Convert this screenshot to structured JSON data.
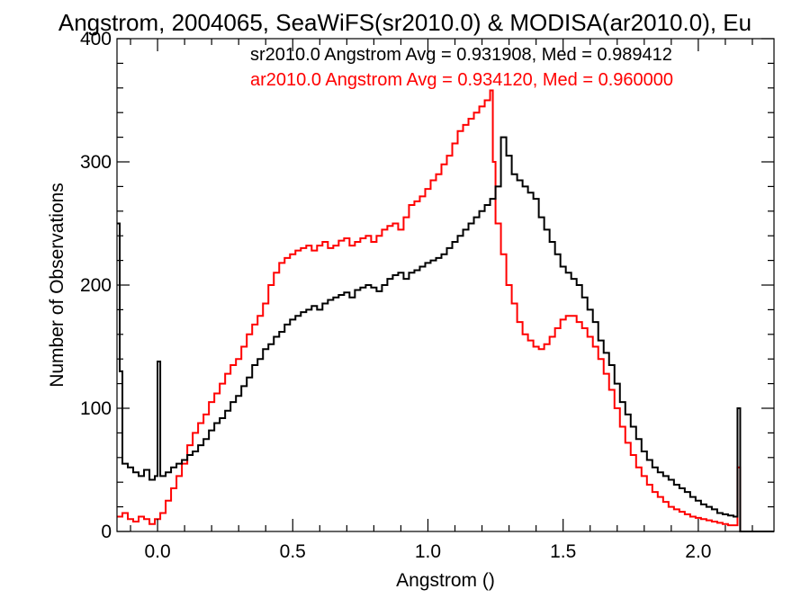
{
  "chart_data": {
    "type": "line",
    "title": "Angstrom, 2004065, SeaWiFS(sr2010.0) & MODISA(ar2010.0), Eu",
    "xlabel": "Angstrom ()",
    "ylabel": "Number of Observations",
    "xlim": [
      -0.15,
      2.28
    ],
    "ylim": [
      0,
      400
    ],
    "x_ticks": [
      0.0,
      0.5,
      1.0,
      1.5,
      2.0
    ],
    "x_tick_labels": [
      "0.0",
      "0.5",
      "1.0",
      "1.5",
      "2.0"
    ],
    "y_ticks": [
      0,
      100,
      200,
      300,
      400
    ],
    "y_tick_labels": [
      "0",
      "100",
      "200",
      "300",
      "400"
    ],
    "grid": false,
    "legend_position": "top-right",
    "series": [
      {
        "name": "sr2010.0",
        "color": "#000000",
        "annotation": "sr2010.0 Angstrom Avg = 0.931908, Med = 0.989412",
        "points": [
          [
            -0.15,
            250
          ],
          [
            -0.14,
            130
          ],
          [
            -0.13,
            55
          ],
          [
            -0.11,
            52
          ],
          [
            -0.09,
            48
          ],
          [
            -0.07,
            45
          ],
          [
            -0.05,
            50
          ],
          [
            -0.03,
            42
          ],
          [
            -0.01,
            45
          ],
          [
            0.0,
            138
          ],
          [
            0.01,
            45
          ],
          [
            0.03,
            48
          ],
          [
            0.05,
            52
          ],
          [
            0.07,
            55
          ],
          [
            0.09,
            58
          ],
          [
            0.11,
            62
          ],
          [
            0.13,
            65
          ],
          [
            0.15,
            70
          ],
          [
            0.17,
            75
          ],
          [
            0.19,
            82
          ],
          [
            0.21,
            88
          ],
          [
            0.23,
            92
          ],
          [
            0.25,
            98
          ],
          [
            0.27,
            105
          ],
          [
            0.29,
            110
          ],
          [
            0.31,
            118
          ],
          [
            0.33,
            125
          ],
          [
            0.35,
            135
          ],
          [
            0.37,
            140
          ],
          [
            0.39,
            148
          ],
          [
            0.41,
            152
          ],
          [
            0.43,
            158
          ],
          [
            0.45,
            162
          ],
          [
            0.47,
            168
          ],
          [
            0.49,
            172
          ],
          [
            0.51,
            175
          ],
          [
            0.53,
            178
          ],
          [
            0.55,
            180
          ],
          [
            0.57,
            183
          ],
          [
            0.59,
            180
          ],
          [
            0.61,
            185
          ],
          [
            0.63,
            188
          ],
          [
            0.65,
            190
          ],
          [
            0.67,
            192
          ],
          [
            0.69,
            194
          ],
          [
            0.71,
            190
          ],
          [
            0.73,
            196
          ],
          [
            0.75,
            198
          ],
          [
            0.77,
            200
          ],
          [
            0.79,
            198
          ],
          [
            0.81,
            195
          ],
          [
            0.83,
            200
          ],
          [
            0.85,
            205
          ],
          [
            0.87,
            208
          ],
          [
            0.89,
            210
          ],
          [
            0.91,
            205
          ],
          [
            0.93,
            210
          ],
          [
            0.95,
            212
          ],
          [
            0.97,
            215
          ],
          [
            0.99,
            218
          ],
          [
            1.01,
            220
          ],
          [
            1.03,
            222
          ],
          [
            1.05,
            225
          ],
          [
            1.07,
            230
          ],
          [
            1.09,
            235
          ],
          [
            1.11,
            240
          ],
          [
            1.13,
            245
          ],
          [
            1.15,
            250
          ],
          [
            1.17,
            255
          ],
          [
            1.19,
            260
          ],
          [
            1.21,
            265
          ],
          [
            1.23,
            270
          ],
          [
            1.25,
            280
          ],
          [
            1.27,
            320
          ],
          [
            1.29,
            305
          ],
          [
            1.31,
            290
          ],
          [
            1.33,
            285
          ],
          [
            1.35,
            280
          ],
          [
            1.37,
            275
          ],
          [
            1.39,
            270
          ],
          [
            1.41,
            255
          ],
          [
            1.43,
            245
          ],
          [
            1.45,
            235
          ],
          [
            1.47,
            225
          ],
          [
            1.49,
            215
          ],
          [
            1.51,
            210
          ],
          [
            1.53,
            205
          ],
          [
            1.55,
            200
          ],
          [
            1.57,
            190
          ],
          [
            1.59,
            180
          ],
          [
            1.61,
            170
          ],
          [
            1.63,
            155
          ],
          [
            1.65,
            145
          ],
          [
            1.67,
            135
          ],
          [
            1.69,
            120
          ],
          [
            1.71,
            105
          ],
          [
            1.73,
            95
          ],
          [
            1.75,
            85
          ],
          [
            1.77,
            75
          ],
          [
            1.79,
            65
          ],
          [
            1.81,
            58
          ],
          [
            1.83,
            52
          ],
          [
            1.85,
            48
          ],
          [
            1.87,
            45
          ],
          [
            1.89,
            42
          ],
          [
            1.91,
            38
          ],
          [
            1.93,
            35
          ],
          [
            1.95,
            32
          ],
          [
            1.97,
            28
          ],
          [
            1.99,
            25
          ],
          [
            2.01,
            22
          ],
          [
            2.03,
            20
          ],
          [
            2.05,
            18
          ],
          [
            2.07,
            15
          ],
          [
            2.09,
            14
          ],
          [
            2.11,
            13
          ],
          [
            2.13,
            12
          ],
          [
            2.145,
            100
          ],
          [
            2.155,
            0
          ],
          [
            2.28,
            0
          ]
        ]
      },
      {
        "name": "ar2010.0",
        "color": "#ff0000",
        "annotation": "ar2010.0 Angstrom Avg = 0.934120, Med = 0.960000",
        "points": [
          [
            -0.15,
            12
          ],
          [
            -0.13,
            15
          ],
          [
            -0.11,
            10
          ],
          [
            -0.09,
            8
          ],
          [
            -0.07,
            12
          ],
          [
            -0.05,
            10
          ],
          [
            -0.03,
            6
          ],
          [
            -0.01,
            10
          ],
          [
            0.01,
            15
          ],
          [
            0.03,
            25
          ],
          [
            0.05,
            35
          ],
          [
            0.07,
            45
          ],
          [
            0.09,
            55
          ],
          [
            0.11,
            70
          ],
          [
            0.13,
            80
          ],
          [
            0.15,
            88
          ],
          [
            0.17,
            95
          ],
          [
            0.19,
            105
          ],
          [
            0.21,
            112
          ],
          [
            0.23,
            120
          ],
          [
            0.25,
            128
          ],
          [
            0.27,
            135
          ],
          [
            0.29,
            140
          ],
          [
            0.31,
            150
          ],
          [
            0.33,
            160
          ],
          [
            0.35,
            168
          ],
          [
            0.37,
            175
          ],
          [
            0.39,
            185
          ],
          [
            0.41,
            200
          ],
          [
            0.43,
            210
          ],
          [
            0.45,
            218
          ],
          [
            0.47,
            222
          ],
          [
            0.49,
            225
          ],
          [
            0.51,
            228
          ],
          [
            0.53,
            230
          ],
          [
            0.55,
            232
          ],
          [
            0.57,
            228
          ],
          [
            0.59,
            232
          ],
          [
            0.61,
            235
          ],
          [
            0.63,
            230
          ],
          [
            0.65,
            232
          ],
          [
            0.67,
            236
          ],
          [
            0.69,
            238
          ],
          [
            0.71,
            232
          ],
          [
            0.73,
            235
          ],
          [
            0.75,
            238
          ],
          [
            0.77,
            240
          ],
          [
            0.79,
            235
          ],
          [
            0.81,
            240
          ],
          [
            0.83,
            245
          ],
          [
            0.85,
            248
          ],
          [
            0.87,
            250
          ],
          [
            0.89,
            245
          ],
          [
            0.91,
            255
          ],
          [
            0.93,
            265
          ],
          [
            0.95,
            268
          ],
          [
            0.97,
            272
          ],
          [
            0.99,
            278
          ],
          [
            1.01,
            285
          ],
          [
            1.03,
            290
          ],
          [
            1.05,
            298
          ],
          [
            1.07,
            305
          ],
          [
            1.09,
            315
          ],
          [
            1.11,
            325
          ],
          [
            1.13,
            330
          ],
          [
            1.15,
            335
          ],
          [
            1.17,
            340
          ],
          [
            1.19,
            345
          ],
          [
            1.21,
            350
          ],
          [
            1.23,
            358
          ],
          [
            1.24,
            300
          ],
          [
            1.25,
            250
          ],
          [
            1.27,
            225
          ],
          [
            1.29,
            200
          ],
          [
            1.31,
            185
          ],
          [
            1.33,
            170
          ],
          [
            1.35,
            160
          ],
          [
            1.37,
            155
          ],
          [
            1.39,
            150
          ],
          [
            1.41,
            148
          ],
          [
            1.43,
            152
          ],
          [
            1.45,
            158
          ],
          [
            1.47,
            165
          ],
          [
            1.49,
            172
          ],
          [
            1.51,
            175
          ],
          [
            1.53,
            175
          ],
          [
            1.55,
            170
          ],
          [
            1.57,
            165
          ],
          [
            1.59,
            158
          ],
          [
            1.61,
            150
          ],
          [
            1.63,
            140
          ],
          [
            1.65,
            128
          ],
          [
            1.67,
            115
          ],
          [
            1.69,
            100
          ],
          [
            1.71,
            85
          ],
          [
            1.73,
            72
          ],
          [
            1.75,
            62
          ],
          [
            1.77,
            52
          ],
          [
            1.79,
            45
          ],
          [
            1.81,
            38
          ],
          [
            1.83,
            32
          ],
          [
            1.85,
            28
          ],
          [
            1.87,
            24
          ],
          [
            1.89,
            20
          ],
          [
            1.91,
            18
          ],
          [
            1.93,
            16
          ],
          [
            1.95,
            14
          ],
          [
            1.97,
            12
          ],
          [
            1.99,
            11
          ],
          [
            2.01,
            10
          ],
          [
            2.03,
            9
          ],
          [
            2.05,
            8
          ],
          [
            2.07,
            7
          ],
          [
            2.09,
            6
          ],
          [
            2.11,
            5
          ],
          [
            2.13,
            5
          ],
          [
            2.145,
            52
          ],
          [
            2.155,
            0
          ],
          [
            2.28,
            0
          ]
        ]
      }
    ]
  }
}
